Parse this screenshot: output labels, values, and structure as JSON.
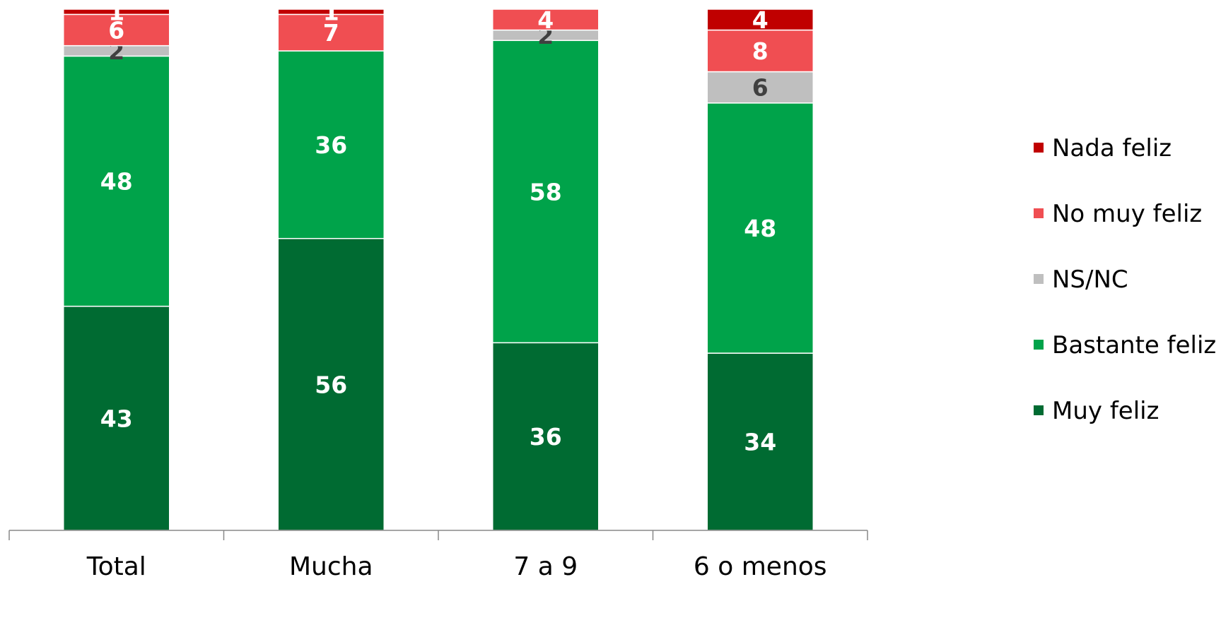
{
  "chart_data": {
    "type": "bar",
    "stacked": true,
    "categories": [
      "Total",
      "Mucha",
      "7 a 9",
      "6 o menos"
    ],
    "ylim": [
      0,
      100
    ],
    "series": [
      {
        "name": "Muy feliz",
        "values": [
          43,
          56,
          36,
          34
        ],
        "label_color": "#ffffff"
      },
      {
        "name": "Bastante feliz",
        "values": [
          48,
          36,
          58,
          48
        ],
        "label_color": "#ffffff"
      },
      {
        "name": "NS/NC",
        "values": [
          2,
          0,
          2,
          6
        ],
        "label_color": "#404040"
      },
      {
        "name": "No muy feliz",
        "values": [
          6,
          7,
          4,
          8
        ],
        "label_color": "#ffffff"
      },
      {
        "name": "Nada feliz",
        "values": [
          1,
          1,
          0,
          4
        ],
        "label_color": "#ffffff"
      }
    ],
    "legend_position": "right",
    "grid": false
  },
  "colors": {
    "Muy feliz": "#006B32",
    "Bastante feliz": "#00A34A",
    "NS/NC": "#BFBFBF",
    "No muy feliz": "#F04E52",
    "Nada feliz": "#C00000"
  },
  "legend": [
    {
      "label": "Nada feliz",
      "color": "#C00000"
    },
    {
      "label": "No muy feliz",
      "color": "#F04E52"
    },
    {
      "label": "NS/NC",
      "color": "#BFBFBF"
    },
    {
      "label": "Bastante feliz",
      "color": "#00A34A"
    },
    {
      "label": "Muy feliz",
      "color": "#006B32"
    }
  ]
}
